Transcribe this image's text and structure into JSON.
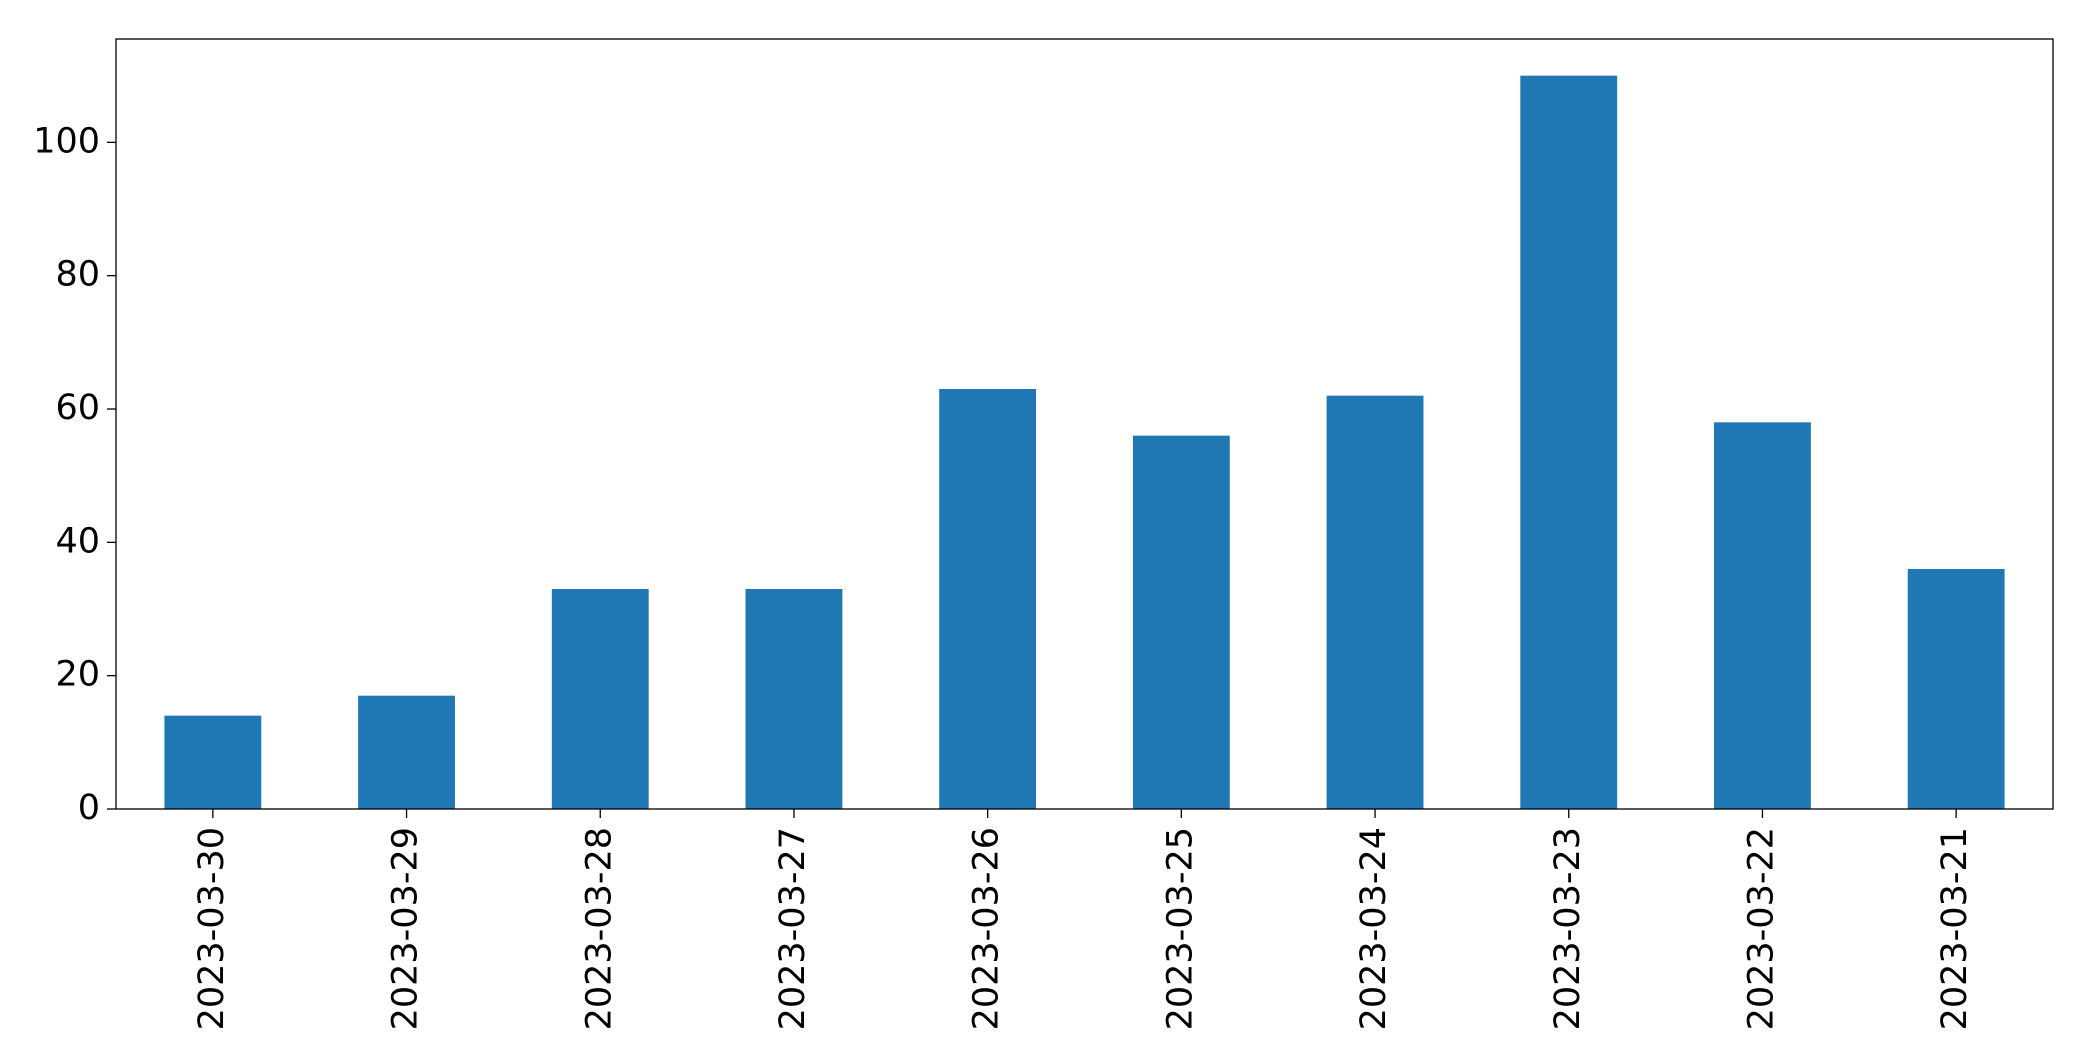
{
  "chart_data": {
    "type": "bar",
    "categories": [
      "2023-03-30",
      "2023-03-29",
      "2023-03-28",
      "2023-03-27",
      "2023-03-26",
      "2023-03-25",
      "2023-03-24",
      "2023-03-23",
      "2023-03-22",
      "2023-03-21"
    ],
    "values": [
      14,
      17,
      33,
      33,
      63,
      56,
      62,
      110,
      58,
      36
    ],
    "color": "#1f77b4",
    "ylim": [
      0,
      115.5
    ],
    "yticks": [
      0,
      20,
      40,
      60,
      80,
      100
    ],
    "grid": false
  }
}
